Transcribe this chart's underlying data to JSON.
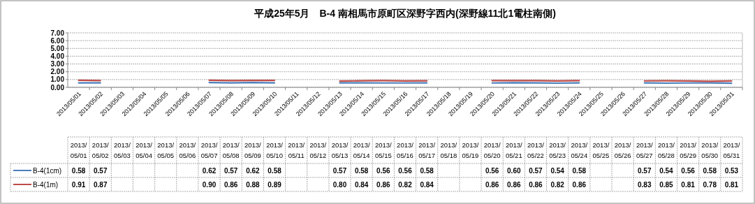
{
  "chart_data": {
    "type": "line",
    "title": "平成25年5月　B-4 南相馬市原町区深野字西内(深野線11北1電柱南側)",
    "categories": [
      "2013/05/01",
      "2013/05/02",
      "2013/05/03",
      "2013/05/04",
      "2013/05/05",
      "2013/05/06",
      "2013/05/07",
      "2013/05/08",
      "2013/05/09",
      "2013/05/10",
      "2013/05/11",
      "2013/05/12",
      "2013/05/13",
      "2013/05/14",
      "2013/05/15",
      "2013/05/16",
      "2013/05/17",
      "2013/05/18",
      "2013/05/19",
      "2013/05/20",
      "2013/05/21",
      "2013/05/22",
      "2013/05/23",
      "2013/05/24",
      "2013/05/25",
      "2013/05/26",
      "2013/05/27",
      "2013/05/28",
      "2013/05/29",
      "2013/05/30",
      "2013/05/31"
    ],
    "series": [
      {
        "name": "B-4(1cm)",
        "color": "#4a7ebb",
        "values": [
          0.58,
          0.57,
          null,
          null,
          null,
          null,
          0.62,
          0.57,
          0.62,
          0.58,
          null,
          null,
          0.57,
          0.58,
          0.56,
          0.56,
          0.58,
          null,
          null,
          0.56,
          0.6,
          0.57,
          0.54,
          0.58,
          null,
          null,
          0.57,
          0.54,
          0.56,
          0.58,
          0.53
        ],
        "value_labels": [
          "0.58",
          "0.57",
          null,
          null,
          null,
          null,
          "0.62",
          "0.57",
          "0.62",
          "0.58",
          null,
          null,
          "0.57",
          "0.58",
          "0.56",
          "0.56",
          "0.58",
          null,
          null,
          "0.56",
          "0.60",
          "0.57",
          "0.54",
          "0.58",
          null,
          null,
          "0.57",
          "0.54",
          "0.56",
          "0.58",
          "0.53"
        ]
      },
      {
        "name": "B-4(1m)",
        "color": "#be4b48",
        "values": [
          0.91,
          0.87,
          null,
          null,
          null,
          null,
          0.9,
          0.86,
          0.88,
          0.89,
          null,
          null,
          0.8,
          0.84,
          0.86,
          0.82,
          0.84,
          null,
          null,
          0.86,
          0.86,
          0.86,
          0.82,
          0.86,
          null,
          null,
          0.83,
          0.85,
          0.81,
          0.78,
          0.81
        ],
        "value_labels": [
          "0.91",
          "0.87",
          null,
          null,
          null,
          null,
          "0.90",
          "0.86",
          "0.88",
          "0.89",
          null,
          null,
          "0.80",
          "0.84",
          "0.86",
          "0.82",
          "0.84",
          null,
          null,
          "0.86",
          "0.86",
          "0.86",
          "0.82",
          "0.86",
          null,
          null,
          "0.83",
          "0.85",
          "0.81",
          "0.78",
          "0.81"
        ]
      }
    ],
    "ylim": [
      0,
      7
    ],
    "yticks": [
      {
        "value": 0,
        "label": "0.00"
      },
      {
        "value": 1,
        "label": "1.00"
      },
      {
        "value": 2,
        "label": "2.00"
      },
      {
        "value": 3,
        "label": "3.00"
      },
      {
        "value": 4,
        "label": "4.00"
      },
      {
        "value": 5,
        "label": "5.00"
      },
      {
        "value": 6,
        "label": "6.00"
      },
      {
        "value": 7,
        "label": "7.00"
      }
    ],
    "grid": "y",
    "legend": "bottom"
  }
}
